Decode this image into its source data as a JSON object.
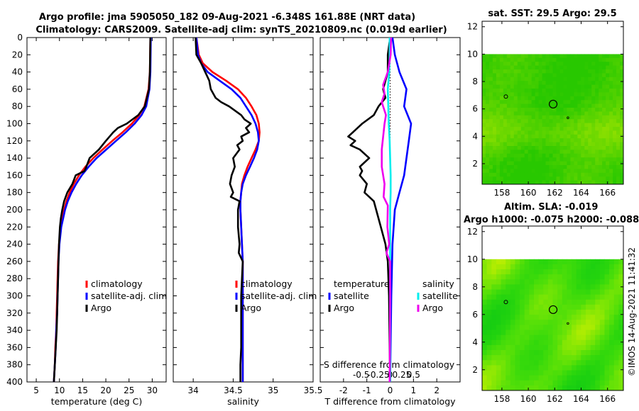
{
  "header": {
    "line1": "Argo profile: jma 5905050_182 09-Aug-2021 -6.348S 161.88E (NRT data)",
    "line2": "Climatology: CARS2009. Satellite-adj clim: synTS_20210809.nc (0.019d earlier)"
  },
  "footer_stamp": "©IMOS 14-Aug-2021 11:41:32",
  "colors": {
    "climatology": "#ff0000",
    "satellite": "#0000ff",
    "argo": "#000000",
    "t_sat": "#0000ff",
    "t_argo": "#000000",
    "s_sat": "#00eeee",
    "s_argo": "#ee00ee"
  },
  "chart_data": [
    {
      "id": "temperature",
      "type": "line",
      "xlabel": "temperature (deg C)",
      "ylim": [
        0,
        400
      ],
      "xlim": [
        3,
        33
      ],
      "x_ticks": [
        5,
        10,
        15,
        20,
        25,
        30
      ],
      "y_ticks": [
        0,
        20,
        40,
        60,
        80,
        100,
        120,
        140,
        160,
        180,
        200,
        220,
        240,
        260,
        280,
        300,
        320,
        340,
        360,
        380,
        400
      ],
      "legend": [
        "climatology",
        "satellite-adj. clim",
        "Argo"
      ],
      "series": [
        {
          "name": "climatology",
          "depth": [
            0,
            40,
            60,
            80,
            90,
            100,
            110,
            120,
            130,
            140,
            150,
            160,
            170,
            180,
            190,
            200,
            220,
            240,
            260,
            280,
            300,
            320,
            340,
            360,
            380,
            400
          ],
          "values": [
            29.6,
            29.5,
            29.2,
            28.3,
            27.2,
            25.6,
            23.6,
            21.4,
            19.3,
            17.3,
            15.6,
            14.2,
            13.1,
            12.2,
            11.5,
            11.0,
            10.3,
            9.9,
            9.7,
            9.6,
            9.5,
            9.4,
            9.3,
            9.1,
            9.0,
            8.8
          ]
        },
        {
          "name": "satellite-adj. clim",
          "depth": [
            0,
            40,
            60,
            80,
            90,
            100,
            110,
            120,
            130,
            140,
            150,
            160,
            170,
            180,
            190,
            200,
            220,
            240,
            260,
            280,
            300,
            320,
            340,
            360,
            380,
            400
          ],
          "values": [
            29.7,
            29.6,
            29.4,
            28.7,
            27.7,
            26.2,
            24.3,
            22.2,
            20.1,
            18.0,
            16.3,
            14.8,
            13.6,
            12.6,
            11.8,
            11.2,
            10.4,
            10.0,
            9.8,
            9.7,
            9.6,
            9.5,
            9.3,
            9.2,
            9.0,
            8.8
          ]
        },
        {
          "name": "Argo",
          "depth": [
            0,
            40,
            60,
            80,
            90,
            100,
            105,
            110,
            120,
            130,
            140,
            150,
            155,
            160,
            170,
            180,
            190,
            200,
            210,
            220,
            240,
            260,
            280,
            300,
            320,
            340,
            360,
            380,
            400
          ],
          "values": [
            29.6,
            29.5,
            29.3,
            28.4,
            27.0,
            24.5,
            22.6,
            21.6,
            20.0,
            18.5,
            16.5,
            15.8,
            15.4,
            13.5,
            12.8,
            11.7,
            11.0,
            10.6,
            10.3,
            10.1,
            9.9,
            9.8,
            9.7,
            9.6,
            9.5,
            9.4,
            9.2,
            9.0,
            8.8
          ]
        }
      ]
    },
    {
      "id": "salinity",
      "type": "line",
      "xlabel": "salinity",
      "ylim": [
        0,
        400
      ],
      "xlim": [
        33.75,
        35.5
      ],
      "x_ticks": [
        34,
        34.5,
        35,
        35.5
      ],
      "legend": [
        "climatology",
        "satellite-adj. clim",
        "Argo"
      ],
      "series": [
        {
          "name": "climatology",
          "depth": [
            0,
            20,
            30,
            40,
            50,
            60,
            70,
            80,
            90,
            100,
            110,
            120,
            130,
            140,
            150,
            160,
            170,
            180,
            190,
            200,
            220,
            240,
            260,
            280,
            300,
            320,
            340,
            360,
            380,
            400
          ],
          "values": [
            34.04,
            34.07,
            34.12,
            34.24,
            34.41,
            34.56,
            34.66,
            34.73,
            34.79,
            34.82,
            34.83,
            34.82,
            34.78,
            34.73,
            34.68,
            34.64,
            34.61,
            34.6,
            34.59,
            34.59,
            34.6,
            34.61,
            34.62,
            34.62,
            34.62,
            34.62,
            34.62,
            34.62,
            34.62,
            34.62
          ]
        },
        {
          "name": "satellite-adj. clim",
          "depth": [
            0,
            20,
            30,
            40,
            50,
            60,
            70,
            80,
            90,
            100,
            110,
            120,
            130,
            140,
            150,
            160,
            170,
            180,
            190,
            200,
            220,
            240,
            260,
            280,
            300,
            320,
            340,
            360,
            380,
            400
          ],
          "values": [
            34.04,
            34.06,
            34.1,
            34.18,
            34.33,
            34.48,
            34.59,
            34.66,
            34.73,
            34.78,
            34.81,
            34.82,
            34.8,
            34.76,
            34.71,
            34.66,
            34.62,
            34.6,
            34.59,
            34.59,
            34.6,
            34.61,
            34.62,
            34.62,
            34.62,
            34.62,
            34.62,
            34.62,
            34.62,
            34.62
          ]
        },
        {
          "name": "Argo",
          "depth": [
            0,
            20,
            30,
            40,
            50,
            60,
            70,
            75,
            80,
            90,
            95,
            100,
            105,
            110,
            115,
            120,
            125,
            130,
            140,
            150,
            160,
            170,
            180,
            185,
            190,
            200,
            220,
            240,
            250,
            260,
            280,
            300,
            320,
            340,
            360,
            380,
            400
          ],
          "values": [
            34.03,
            34.04,
            34.1,
            34.15,
            34.2,
            34.22,
            34.28,
            34.35,
            34.45,
            34.6,
            34.64,
            34.72,
            34.66,
            34.7,
            34.6,
            34.62,
            34.55,
            34.58,
            34.5,
            34.52,
            34.48,
            34.46,
            34.5,
            34.47,
            34.58,
            34.56,
            34.56,
            34.58,
            34.57,
            34.62,
            34.61,
            34.6,
            34.6,
            34.6,
            34.6,
            34.59,
            34.59
          ]
        }
      ]
    },
    {
      "id": "differences",
      "type": "line",
      "xlabel": "T difference from climatology",
      "top_label": "S difference from climatology",
      "ylim": [
        0,
        400
      ],
      "xlim": [
        -3,
        3
      ],
      "x_ticks": [
        -2,
        -1,
        0,
        1,
        2
      ],
      "s_ticks": [
        "-0.5",
        "-0.25",
        "0",
        "0.25",
        "0.5"
      ],
      "legend_titles": [
        "temperature",
        "salinity"
      ],
      "legend": [
        "satellite",
        "Argo",
        "satellite",
        "Argo"
      ],
      "series": [
        {
          "name": "T satellite",
          "depth": [
            0,
            20,
            40,
            60,
            80,
            100,
            120,
            140,
            160,
            180,
            200,
            240,
            300,
            400
          ],
          "values": [
            0.1,
            0.2,
            0.4,
            0.7,
            0.6,
            0.9,
            0.8,
            0.7,
            0.6,
            0.4,
            0.2,
            0.1,
            0.05,
            0.0
          ]
        },
        {
          "name": "T Argo",
          "depth": [
            0,
            20,
            40,
            50,
            60,
            70,
            80,
            90,
            100,
            110,
            115,
            120,
            125,
            130,
            140,
            150,
            155,
            160,
            170,
            180,
            185,
            190,
            200,
            220,
            240,
            260,
            300,
            400
          ],
          "values": [
            0.0,
            -0.1,
            -0.1,
            -0.2,
            -0.3,
            -0.2,
            -0.5,
            -0.7,
            -1.2,
            -1.6,
            -1.8,
            -1.5,
            -1.7,
            -1.3,
            -0.9,
            -1.3,
            -1.2,
            -1.3,
            -1.0,
            -1.1,
            -0.9,
            -0.7,
            -0.6,
            -0.4,
            -0.2,
            -0.1,
            -0.05,
            0.0
          ]
        },
        {
          "name": "S satellite",
          "depth": [
            0,
            20,
            40,
            60,
            80,
            100,
            120,
            140,
            160,
            180,
            200,
            240,
            300,
            400
          ],
          "values": [
            -0.01,
            -0.01,
            -0.02,
            -0.05,
            -0.04,
            -0.03,
            -0.01,
            0.0,
            0.01,
            0.01,
            0.0,
            0.0,
            0.0,
            0.0
          ]
        },
        {
          "name": "S Argo",
          "depth": [
            0,
            20,
            40,
            55,
            65,
            75,
            90,
            100,
            110,
            130,
            150,
            170,
            185,
            195,
            220,
            240,
            250,
            260,
            300,
            400
          ],
          "values": [
            0.02,
            0.01,
            -0.05,
            -0.15,
            -0.12,
            -0.18,
            -0.09,
            -0.12,
            -0.14,
            -0.18,
            -0.18,
            -0.12,
            -0.14,
            -0.05,
            -0.06,
            -0.02,
            -0.08,
            0.0,
            0.0,
            -0.01
          ]
        }
      ]
    },
    {
      "id": "sst_map",
      "type": "heatmap",
      "title": "sat. SST: 29.5 Argo: 29.5",
      "xlim": [
        156.5,
        167.2
      ],
      "ylim": [
        0.5,
        12.4
      ],
      "x_ticks": [
        158,
        160,
        162,
        164,
        166
      ],
      "y_ticks": [
        2,
        4,
        6,
        8,
        10,
        12
      ],
      "data_ylim": [
        0.5,
        10.0
      ],
      "argo_position": [
        161.88,
        6.35
      ]
    },
    {
      "id": "sla_map",
      "type": "heatmap",
      "title_line1": "Altim. SLA: -0.019",
      "title_line2": "Argo h1000: -0.075 h2000: -0.088",
      "xlim": [
        156.5,
        167.2
      ],
      "ylim": [
        0.5,
        12.4
      ],
      "x_ticks": [
        158,
        160,
        162,
        164,
        166
      ],
      "y_ticks": [
        2,
        4,
        6,
        8,
        10,
        12
      ],
      "data_ylim": [
        0.5,
        10.0
      ],
      "argo_position": [
        161.88,
        6.35
      ]
    }
  ]
}
